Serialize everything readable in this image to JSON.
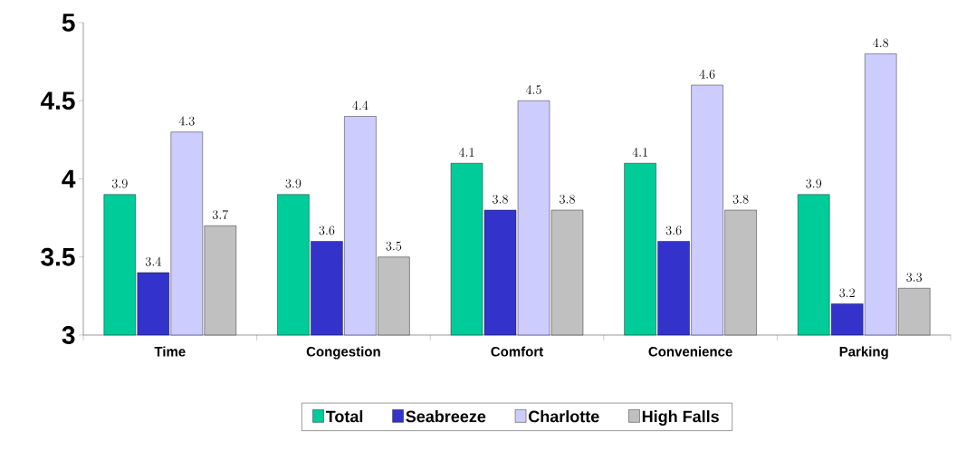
{
  "chart_data": {
    "type": "bar",
    "categories": [
      "Time",
      "Congestion",
      "Comfort",
      "Convenience",
      "Parking"
    ],
    "series": [
      {
        "name": "Total",
        "color": "#00cc99",
        "values": [
          3.9,
          3.9,
          4.1,
          4.1,
          3.9
        ]
      },
      {
        "name": "Seabreeze",
        "color": "#3333cc",
        "values": [
          3.4,
          3.6,
          3.8,
          3.6,
          3.2
        ]
      },
      {
        "name": "Charlotte",
        "color": "#ccccff",
        "values": [
          4.3,
          4.4,
          4.5,
          4.6,
          4.8
        ]
      },
      {
        "name": "High Falls",
        "color": "#c0c0c0",
        "values": [
          3.7,
          3.5,
          3.8,
          3.8,
          3.3
        ]
      }
    ],
    "ylim": [
      3,
      5
    ],
    "yticks": [
      3,
      3.5,
      4,
      4.5,
      5
    ],
    "data_labels": true,
    "legend": "bottom"
  }
}
